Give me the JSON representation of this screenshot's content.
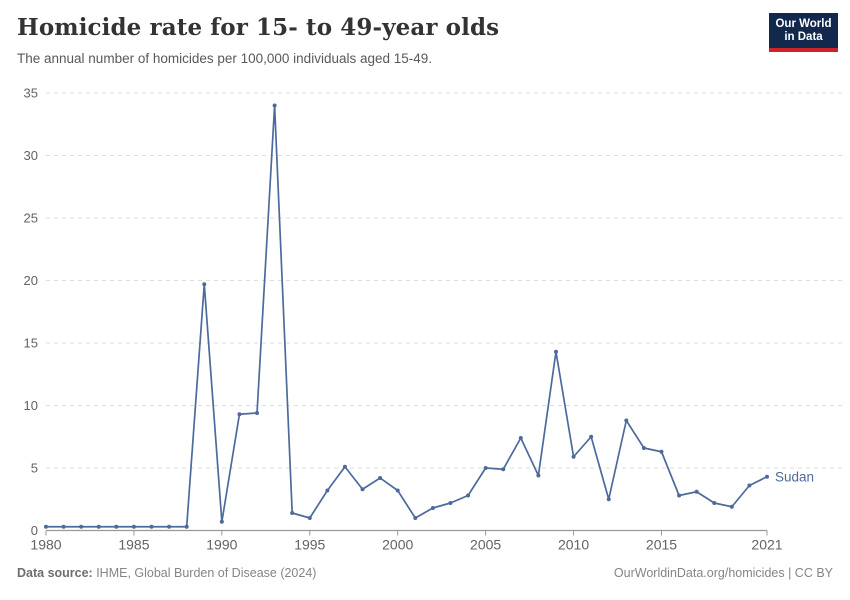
{
  "header": {
    "title": "Homicide rate for 15- to 49-year olds",
    "subtitle": "The annual number of homicides per 100,000 individuals aged 15-49.",
    "logo_line1": "Our World",
    "logo_line2": "in Data"
  },
  "chart_data": {
    "type": "line",
    "title": "Homicide rate for 15- to 49-year olds",
    "subtitle": "The annual number of homicides per 100,000 individuals aged 15-49.",
    "xlabel": "",
    "ylabel": "",
    "xlim": [
      1980,
      2021
    ],
    "ylim": [
      0,
      35
    ],
    "x_ticks": [
      1980,
      1985,
      1990,
      1995,
      2000,
      2005,
      2010,
      2015,
      2021
    ],
    "y_ticks": [
      0,
      5,
      10,
      15,
      20,
      25,
      30,
      35
    ],
    "grid": "horizontal-dashed",
    "legend_position": "end-of-line-label",
    "series": [
      {
        "name": "Sudan",
        "color": "#4C6A9C",
        "x": [
          1980,
          1981,
          1982,
          1983,
          1984,
          1985,
          1986,
          1987,
          1988,
          1989,
          1990,
          1991,
          1992,
          1993,
          1994,
          1995,
          1996,
          1997,
          1998,
          1999,
          2000,
          2001,
          2002,
          2003,
          2004,
          2005,
          2006,
          2007,
          2008,
          2009,
          2010,
          2011,
          2012,
          2013,
          2014,
          2015,
          2016,
          2017,
          2018,
          2019,
          2020,
          2021
        ],
        "values": [
          0.3,
          0.3,
          0.3,
          0.3,
          0.3,
          0.3,
          0.3,
          0.3,
          0.3,
          19.7,
          0.7,
          9.3,
          9.4,
          34.0,
          1.4,
          1.0,
          3.2,
          5.1,
          3.3,
          4.2,
          3.2,
          1.0,
          1.8,
          2.2,
          2.8,
          5.0,
          4.9,
          7.4,
          4.4,
          14.3,
          5.9,
          7.5,
          2.5,
          8.8,
          6.6,
          6.3,
          2.8,
          3.1,
          2.2,
          1.9,
          3.6,
          4.3
        ]
      }
    ]
  },
  "footer": {
    "source_label": "Data source:",
    "source_text": " IHME, Global Burden of Disease (2024)",
    "right_text": "OurWorldinData.org/homicides | CC BY"
  },
  "colors": {
    "line": "#4C6A9C",
    "grid": "#dddddd",
    "axis": "#999999",
    "tick_label": "#636363",
    "title": "#333333",
    "subtitle": "#595959",
    "footer": "#858585",
    "logo_bg": "#12294d",
    "logo_bar": "#d12229"
  }
}
